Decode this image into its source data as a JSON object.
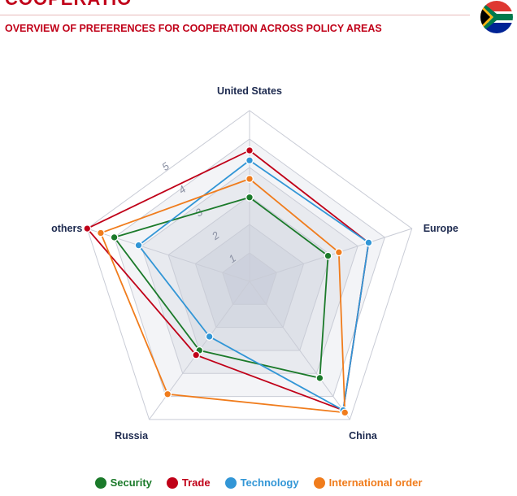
{
  "header": {
    "cut_title": "COOPERATIO",
    "subtitle": "OVERVIEW OF PREFERENCES FOR COOPERATION ACROSS POLICY AREAS"
  },
  "colors": {
    "Security": "#1b7a2a",
    "Trade": "#c00018",
    "Technology": "#3296d6",
    "International order": "#f07c1c",
    "grid": "#c9ccd6",
    "fill": "#8b98b4",
    "axis_label": "#1d2a4f"
  },
  "chart_data": {
    "type": "radar",
    "axes": [
      "United States",
      "Europe",
      "China",
      "Russia",
      "others"
    ],
    "range": [
      0,
      6
    ],
    "rings": 6,
    "tick_labels": [
      "1",
      "2",
      "3",
      "4",
      "5"
    ],
    "series": [
      {
        "name": "Security",
        "values": [
          2.95,
          2.9,
          4.2,
          3.0,
          5.0
        ]
      },
      {
        "name": "Trade",
        "values": [
          4.6,
          4.4,
          5.6,
          3.2,
          6.0
        ]
      },
      {
        "name": "Technology",
        "values": [
          4.25,
          4.4,
          5.6,
          2.4,
          4.1
        ]
      },
      {
        "name": "International order",
        "values": [
          3.6,
          3.3,
          5.7,
          4.9,
          5.5
        ]
      }
    ],
    "legend": [
      "Security",
      "Trade",
      "Technology",
      "International order"
    ],
    "legend_position": "bottom"
  }
}
